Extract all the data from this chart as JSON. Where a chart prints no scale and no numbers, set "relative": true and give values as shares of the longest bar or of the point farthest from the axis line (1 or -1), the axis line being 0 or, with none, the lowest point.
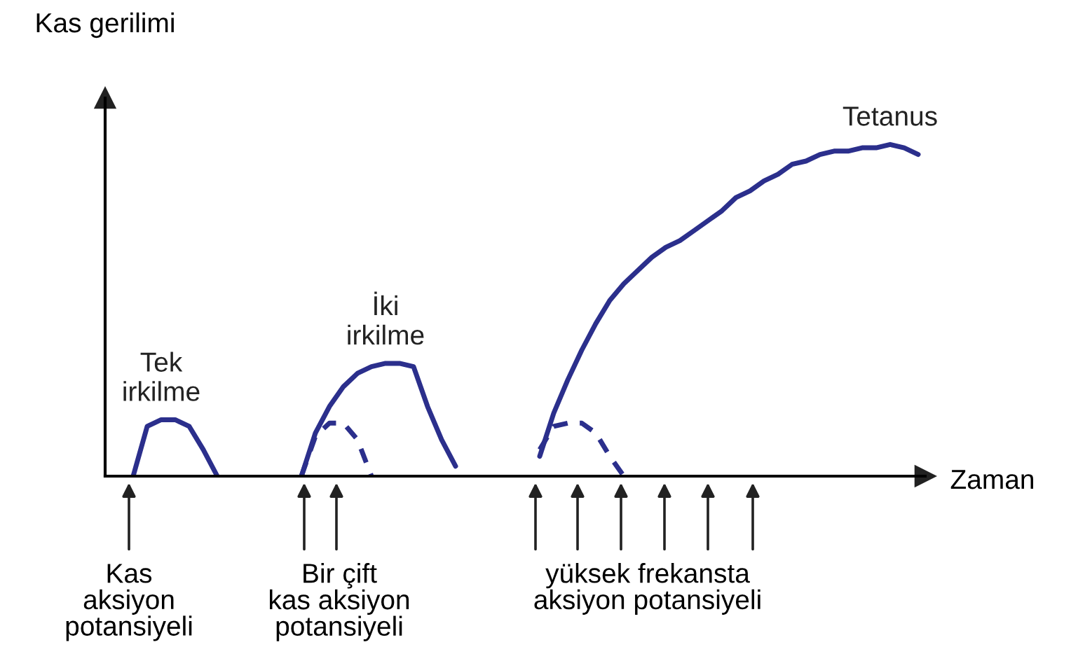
{
  "chart_data": {
    "type": "line",
    "relative": true,
    "xlabel": "Zaman",
    "ylabel": "Kas gerilimi",
    "legend": false,
    "categories": [
      null,
      null,
      null,
      null,
      null,
      null,
      null,
      null,
      null,
      null,
      null,
      null,
      null,
      null,
      null,
      null,
      null,
      null,
      null,
      null,
      null,
      null,
      null,
      null,
      null,
      null,
      null,
      null,
      null,
      null,
      null,
      null,
      null,
      null,
      null,
      null,
      null,
      null,
      null,
      null,
      null,
      null,
      null,
      null,
      null,
      null,
      null,
      null,
      null,
      null,
      null,
      null,
      null,
      null,
      null,
      null,
      null,
      null,
      null
    ],
    "series": [
      {
        "name": "Tek\nirkilme",
        "color": "#2b2f8c",
        "line_style": "solid",
        "values": [
          null,
          null,
          0,
          0.15,
          0.17,
          0.17,
          0.15,
          0.08,
          0,
          null,
          null,
          null,
          null,
          null,
          null,
          null,
          null,
          null,
          null,
          null,
          null,
          null,
          null,
          null,
          null,
          null,
          null,
          null,
          null,
          null,
          null,
          null,
          null,
          null,
          null,
          null,
          null,
          null,
          null,
          null,
          null,
          null,
          null,
          null,
          null,
          null,
          null,
          null,
          null,
          null,
          null,
          null,
          null,
          null,
          null,
          null,
          null,
          null,
          null
        ]
      },
      {
        "name": "İki\nirkilme",
        "color": "#2b2f8c",
        "line_style": "solid",
        "values": [
          null,
          null,
          null,
          null,
          null,
          null,
          null,
          null,
          null,
          null,
          null,
          null,
          null,
          null,
          0,
          0.13,
          0.21,
          0.27,
          0.31,
          0.33,
          0.34,
          0.34,
          0.33,
          0.21,
          0.11,
          0.03,
          null,
          null,
          null,
          null,
          null,
          null,
          null,
          null,
          null,
          null,
          null,
          null,
          null,
          null,
          null,
          null,
          null,
          null,
          null,
          null,
          null,
          null,
          null,
          null,
          null,
          null,
          null,
          null,
          null,
          null,
          null,
          null,
          null
        ]
      },
      {
        "color": "#2b2f8c",
        "line_style": "dashed",
        "values": [
          null,
          null,
          null,
          null,
          null,
          null,
          null,
          null,
          null,
          null,
          null,
          null,
          null,
          null,
          0,
          0.12,
          0.16,
          0.16,
          0.11,
          0,
          null,
          null,
          null,
          null,
          null,
          null,
          null,
          null,
          null,
          null,
          null,
          null,
          null,
          null,
          null,
          null,
          null,
          null,
          null,
          null,
          null,
          null,
          null,
          null,
          null,
          null,
          null,
          null,
          null,
          null,
          null,
          null,
          null,
          null,
          null,
          null,
          null,
          null,
          null
        ]
      },
      {
        "name": "Tetanus",
        "color": "#2b2f8c",
        "line_style": "solid",
        "values": [
          null,
          null,
          null,
          null,
          null,
          null,
          null,
          null,
          null,
          null,
          null,
          null,
          null,
          null,
          null,
          null,
          null,
          null,
          null,
          null,
          null,
          null,
          null,
          null,
          null,
          null,
          null,
          null,
          null,
          null,
          null,
          0.06,
          0.19,
          0.29,
          0.38,
          0.46,
          0.53,
          0.58,
          0.62,
          0.66,
          0.69,
          0.71,
          0.74,
          0.77,
          0.8,
          0.84,
          0.86,
          0.89,
          0.91,
          0.94,
          0.95,
          0.97,
          0.98,
          0.98,
          0.99,
          0.99,
          1,
          0.99,
          0.97
        ]
      },
      {
        "color": "#2b2f8c",
        "line_style": "dashed",
        "values": [
          null,
          null,
          null,
          null,
          null,
          null,
          null,
          null,
          null,
          null,
          null,
          null,
          null,
          null,
          null,
          null,
          null,
          null,
          null,
          null,
          null,
          null,
          null,
          null,
          null,
          null,
          null,
          null,
          null,
          null,
          null,
          0.08,
          0.15,
          0.16,
          0.16,
          0.13,
          0.06,
          0,
          null,
          null,
          null,
          null,
          null,
          null,
          null,
          null,
          null,
          null,
          null,
          null,
          null,
          null,
          null,
          null,
          null,
          null,
          null,
          null,
          null
        ]
      }
    ],
    "annotations": [
      "Kas\naksiyon\npotansiyeli",
      "Bir çift\nkas aksiyon\npotansiyeli",
      "yüksek frekansta\naksiyon potansiyeli"
    ]
  }
}
